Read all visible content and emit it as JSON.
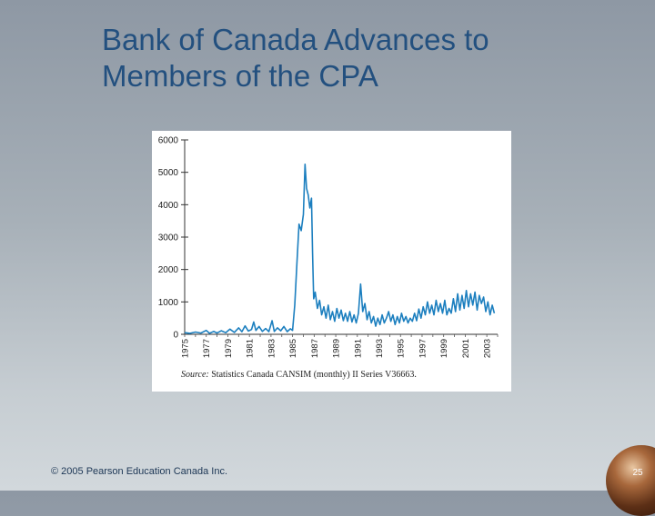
{
  "slide": {
    "title_line1": "Bank of Canada Advances to",
    "title_line2": "Members of the CPA",
    "copyright": "© 2005 Pearson Education Canada Inc.",
    "page_number": "25"
  },
  "colors": {
    "title": "#23507f",
    "line": "#1c7fbf"
  },
  "chart_data": {
    "type": "line",
    "title": "",
    "xlabel": "",
    "ylabel": "",
    "xlim": [
      1975,
      2004
    ],
    "ylim": [
      0,
      6000
    ],
    "yticks": [
      0,
      1000,
      2000,
      3000,
      4000,
      5000,
      6000
    ],
    "xtick_labels": [
      "1975",
      "1977",
      "1979",
      "1981",
      "1983",
      "1985",
      "1987",
      "1989",
      "1991",
      "1993",
      "1995",
      "1997",
      "1999",
      "2001",
      "2003"
    ],
    "source_label": "Source:",
    "source_text": "Statistics Canada CANSIM (monthly) II Series V36663.",
    "series": [
      {
        "values": [
          [
            1975.0,
            50
          ],
          [
            1975.5,
            30
          ],
          [
            1976.0,
            70
          ],
          [
            1976.5,
            40
          ],
          [
            1977.0,
            120
          ],
          [
            1977.3,
            30
          ],
          [
            1977.7,
            90
          ],
          [
            1978.0,
            40
          ],
          [
            1978.4,
            110
          ],
          [
            1978.8,
            50
          ],
          [
            1979.2,
            160
          ],
          [
            1979.6,
            60
          ],
          [
            1980.0,
            200
          ],
          [
            1980.3,
            80
          ],
          [
            1980.6,
            260
          ],
          [
            1980.9,
            100
          ],
          [
            1981.2,
            150
          ],
          [
            1981.4,
            380
          ],
          [
            1981.6,
            120
          ],
          [
            1981.9,
            240
          ],
          [
            1982.2,
            90
          ],
          [
            1982.5,
            180
          ],
          [
            1982.8,
            80
          ],
          [
            1983.1,
            420
          ],
          [
            1983.3,
            90
          ],
          [
            1983.6,
            200
          ],
          [
            1983.9,
            110
          ],
          [
            1984.2,
            240
          ],
          [
            1984.5,
            80
          ],
          [
            1984.8,
            170
          ],
          [
            1985.0,
            120
          ],
          [
            1985.2,
            900
          ],
          [
            1985.4,
            2200
          ],
          [
            1985.6,
            3400
          ],
          [
            1985.8,
            3200
          ],
          [
            1986.0,
            3700
          ],
          [
            1986.15,
            5250
          ],
          [
            1986.3,
            4500
          ],
          [
            1986.45,
            4300
          ],
          [
            1986.6,
            3900
          ],
          [
            1986.75,
            4200
          ],
          [
            1986.85,
            2500
          ],
          [
            1986.95,
            1100
          ],
          [
            1987.1,
            1300
          ],
          [
            1987.3,
            800
          ],
          [
            1987.5,
            1050
          ],
          [
            1987.7,
            600
          ],
          [
            1987.9,
            850
          ],
          [
            1988.1,
            500
          ],
          [
            1988.3,
            900
          ],
          [
            1988.5,
            450
          ],
          [
            1988.7,
            700
          ],
          [
            1988.9,
            400
          ],
          [
            1989.1,
            800
          ],
          [
            1989.3,
            500
          ],
          [
            1989.5,
            750
          ],
          [
            1989.7,
            420
          ],
          [
            1989.9,
            650
          ],
          [
            1990.1,
            400
          ],
          [
            1990.3,
            700
          ],
          [
            1990.5,
            380
          ],
          [
            1990.7,
            600
          ],
          [
            1990.9,
            350
          ],
          [
            1991.1,
            650
          ],
          [
            1991.3,
            1550
          ],
          [
            1991.5,
            700
          ],
          [
            1991.7,
            950
          ],
          [
            1991.9,
            450
          ],
          [
            1992.1,
            700
          ],
          [
            1992.3,
            350
          ],
          [
            1992.5,
            550
          ],
          [
            1992.7,
            250
          ],
          [
            1992.9,
            500
          ],
          [
            1993.1,
            300
          ],
          [
            1993.3,
            600
          ],
          [
            1993.5,
            350
          ],
          [
            1993.7,
            500
          ],
          [
            1993.9,
            700
          ],
          [
            1994.1,
            400
          ],
          [
            1994.3,
            600
          ],
          [
            1994.5,
            300
          ],
          [
            1994.7,
            550
          ],
          [
            1994.9,
            350
          ],
          [
            1995.1,
            650
          ],
          [
            1995.3,
            400
          ],
          [
            1995.5,
            550
          ],
          [
            1995.7,
            350
          ],
          [
            1995.9,
            500
          ],
          [
            1996.1,
            400
          ],
          [
            1996.3,
            650
          ],
          [
            1996.5,
            420
          ],
          [
            1996.7,
            780
          ],
          [
            1996.9,
            500
          ],
          [
            1997.1,
            850
          ],
          [
            1997.3,
            600
          ],
          [
            1997.5,
            1000
          ],
          [
            1997.7,
            650
          ],
          [
            1997.9,
            900
          ],
          [
            1998.1,
            600
          ],
          [
            1998.3,
            1050
          ],
          [
            1998.5,
            700
          ],
          [
            1998.7,
            950
          ],
          [
            1998.9,
            650
          ],
          [
            1999.1,
            1050
          ],
          [
            1999.3,
            600
          ],
          [
            1999.5,
            800
          ],
          [
            1999.7,
            650
          ],
          [
            1999.9,
            1100
          ],
          [
            2000.1,
            700
          ],
          [
            2000.3,
            1250
          ],
          [
            2000.5,
            750
          ],
          [
            2000.7,
            1200
          ],
          [
            2000.9,
            800
          ],
          [
            2001.1,
            1350
          ],
          [
            2001.3,
            850
          ],
          [
            2001.5,
            1250
          ],
          [
            2001.7,
            900
          ],
          [
            2001.9,
            1300
          ],
          [
            2002.1,
            750
          ],
          [
            2002.3,
            1200
          ],
          [
            2002.5,
            950
          ],
          [
            2002.7,
            1150
          ],
          [
            2002.9,
            700
          ],
          [
            2003.1,
            1000
          ],
          [
            2003.3,
            600
          ],
          [
            2003.5,
            900
          ],
          [
            2003.7,
            650
          ]
        ]
      }
    ]
  }
}
